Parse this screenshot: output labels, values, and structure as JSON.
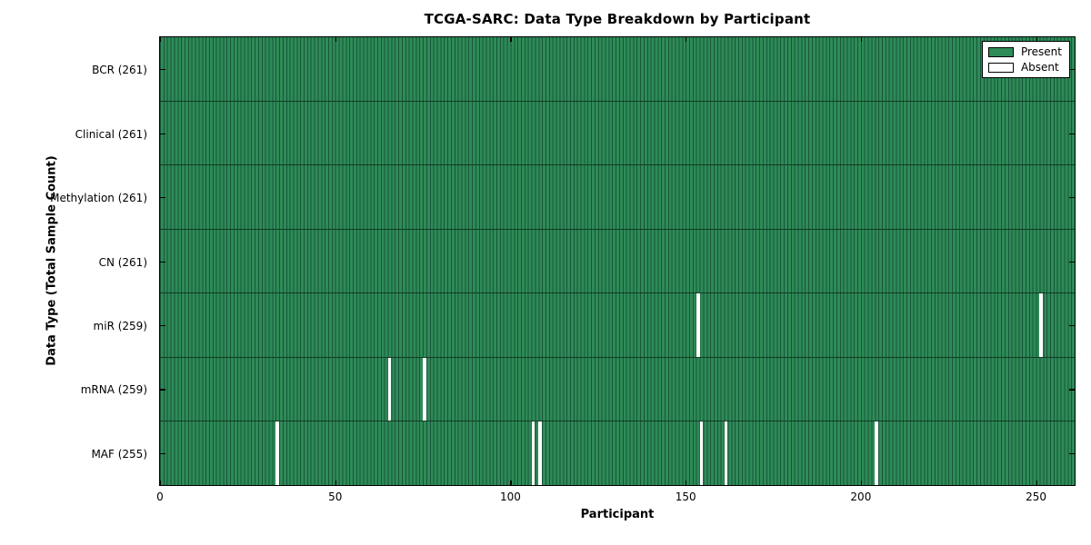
{
  "title": "TCGA-SARC: Data Type Breakdown by Participant",
  "chart_data": {
    "type": "heatmap",
    "title": "TCGA-SARC: Data Type Breakdown by Participant",
    "xlabel": "Participant",
    "ylabel": "Data Type (Total Sample Count)",
    "n_participants": 261,
    "xlim": [
      0,
      261
    ],
    "x_ticks": [
      0,
      50,
      100,
      150,
      200,
      250
    ],
    "grid": false,
    "rows": [
      {
        "data_type": "BCR",
        "label": "BCR (261)",
        "total": 261,
        "absent_participants": []
      },
      {
        "data_type": "Clinical",
        "label": "Clinical (261)",
        "total": 261,
        "absent_participants": []
      },
      {
        "data_type": "Methylation",
        "label": "Methylation (261)",
        "total": 261,
        "absent_participants": []
      },
      {
        "data_type": "CN",
        "label": "CN (261)",
        "total": 261,
        "absent_participants": []
      },
      {
        "data_type": "miR",
        "label": "miR (259)",
        "total": 259,
        "absent_participants": [
          153,
          251
        ]
      },
      {
        "data_type": "mRNA",
        "label": "mRNA (259)",
        "total": 259,
        "absent_participants": [
          65,
          75
        ]
      },
      {
        "data_type": "MAF",
        "label": "MAF (255)",
        "total": 255,
        "absent_participants": [
          33,
          106,
          108,
          154,
          161,
          204
        ]
      }
    ],
    "legend": {
      "position": "upper right",
      "entries": [
        {
          "label": "Present",
          "color": "#2e8b57"
        },
        {
          "label": "Absent",
          "color": "#ffffff"
        }
      ]
    },
    "colors": {
      "present_fill": "#2e8b57",
      "present_edge": "#17563a",
      "row_divider": "#123a26",
      "absent_fill": "#ffffff",
      "axis": "#000000",
      "background": "#ffffff"
    }
  }
}
